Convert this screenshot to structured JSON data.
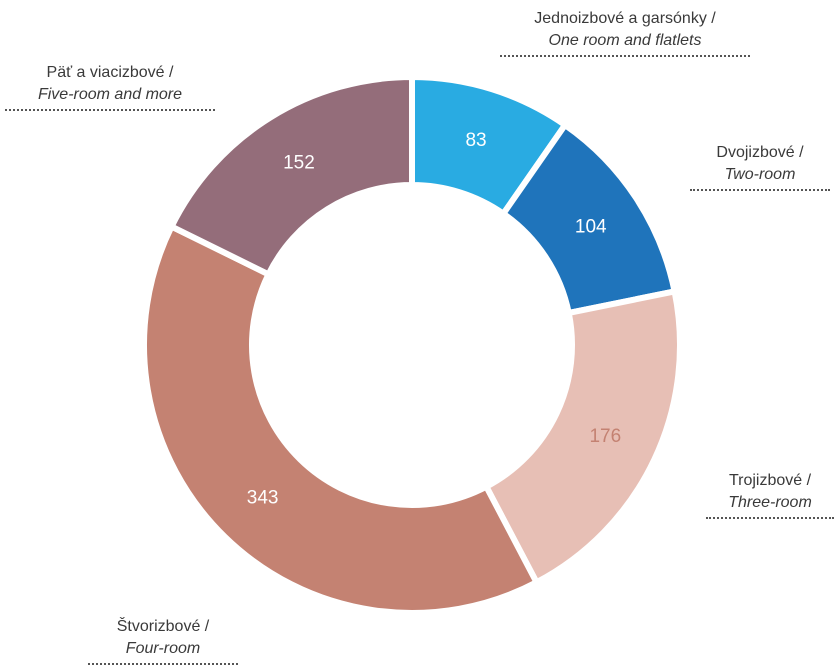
{
  "chart_data": {
    "type": "pie",
    "variant": "donut",
    "title": "",
    "categories": [
      {
        "sk": "Jednoizbové a garsónky /",
        "en": "One room and flatlets"
      },
      {
        "sk": "Dvojizbové /",
        "en": "Two-room"
      },
      {
        "sk": "Trojizbové /",
        "en": "Three-room"
      },
      {
        "sk": "Štvorizbové /",
        "en": "Four-room"
      },
      {
        "sk": "Päť a viacizbové /",
        "en": "Five-room and more"
      }
    ],
    "values": [
      83,
      104,
      176,
      343,
      152
    ],
    "value_labels": [
      "83",
      "104",
      "176",
      "343",
      "152"
    ],
    "colors": [
      "#29ABE2",
      "#1F74BB",
      "#E7BFB5",
      "#C48272",
      "#946D7A"
    ],
    "value_label_colors": [
      "#ffffff",
      "#ffffff",
      "#C48272",
      "#ffffff",
      "#ffffff"
    ],
    "legend": "none"
  }
}
